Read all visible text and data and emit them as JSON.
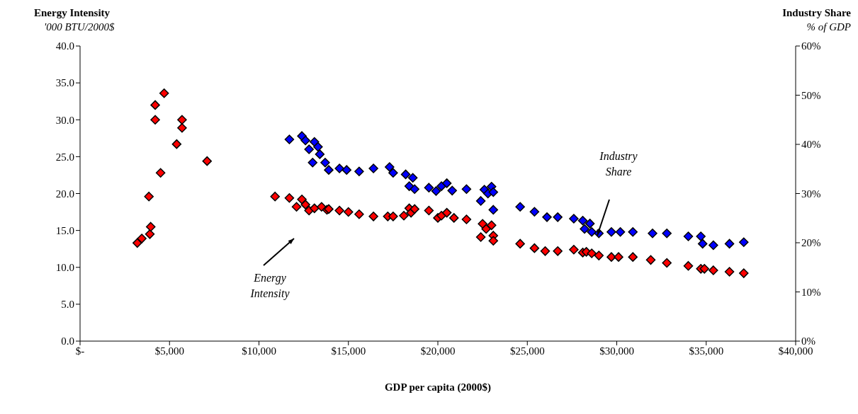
{
  "chart_data": {
    "type": "scatter",
    "xlabel": "GDP per capita (2000$)",
    "ylabel": "Energy Intensity\n'000 BTU/2000$",
    "y2label": "Industry Share\n% of GDP",
    "marker": "diamond",
    "xlim": [
      0,
      40000
    ],
    "xticks": [
      {
        "value": 0,
        "label": "$-"
      },
      {
        "value": 5000,
        "label": "$5,000"
      },
      {
        "value": 10000,
        "label": "$10,000"
      },
      {
        "value": 15000,
        "label": "$15,000"
      },
      {
        "value": 20000,
        "label": "$20,000"
      },
      {
        "value": 25000,
        "label": "$25,000"
      },
      {
        "value": 30000,
        "label": "$30,000"
      },
      {
        "value": 35000,
        "label": "$35,000"
      },
      {
        "value": 40000,
        "label": "$40,000"
      }
    ],
    "ylim": [
      0,
      40
    ],
    "yticks": [
      {
        "value": 0,
        "label": "0.0"
      },
      {
        "value": 5,
        "label": "5.0"
      },
      {
        "value": 10,
        "label": "10.0"
      },
      {
        "value": 15,
        "label": "15.0"
      },
      {
        "value": 20,
        "label": "20.0"
      },
      {
        "value": 25,
        "label": "25.0"
      },
      {
        "value": 30,
        "label": "30.0"
      },
      {
        "value": 35,
        "label": "35.0"
      },
      {
        "value": 40,
        "label": "40.0"
      }
    ],
    "y2lim": [
      0,
      60
    ],
    "y2ticks": [
      {
        "value": 0,
        "label": "0%"
      },
      {
        "value": 10,
        "label": "10%"
      },
      {
        "value": 20,
        "label": "20%"
      },
      {
        "value": 30,
        "label": "30%"
      },
      {
        "value": 40,
        "label": "40%"
      },
      {
        "value": 50,
        "label": "50%"
      },
      {
        "value": 60,
        "label": "60%"
      }
    ],
    "annotations": [
      "Energy Intensity",
      "Industry Share"
    ],
    "series": [
      {
        "color": "#ff0000",
        "x": [
          3200,
          3450,
          3900,
          3950,
          3850,
          4500,
          4200,
          4200,
          4700,
          5400,
          5700,
          5700,
          7100,
          10900,
          11700,
          12100,
          12400,
          12600,
          12800,
          13100,
          13500,
          13800,
          13900,
          14500,
          15000,
          15600,
          16400,
          17200,
          17500,
          18100,
          18400,
          18500,
          18700,
          19500,
          20000,
          20200,
          20500,
          20900,
          21600,
          22400,
          22500,
          22700,
          23000,
          23100,
          23100,
          24600,
          25400,
          26000,
          26700,
          27600,
          28100,
          28300,
          28600,
          29000,
          29700,
          30100,
          30900,
          31900,
          32800,
          34000,
          34700,
          34900,
          35400,
          36300,
          37100
        ],
        "values": [
          13.3,
          13.9,
          14.5,
          15.5,
          19.6,
          22.8,
          30,
          32,
          33.6,
          26.7,
          28.9,
          30,
          24.4,
          19.6,
          19.4,
          18.2,
          19.2,
          18.5,
          17.7,
          18,
          18.2,
          17.8,
          17.9,
          17.7,
          17.5,
          17.2,
          16.9,
          16.9,
          16.9,
          17,
          18,
          17.4,
          17.9,
          17.7,
          16.7,
          17,
          17.4,
          16.7,
          16.5,
          14.1,
          15.9,
          15.2,
          15.7,
          14.3,
          13.6,
          13.2,
          12.6,
          12.2,
          12.2,
          12.4,
          12,
          12.1,
          11.9,
          11.6,
          11.4,
          11.4,
          11.4,
          11,
          10.6,
          10.2,
          9.8,
          9.8,
          9.6,
          9.4,
          9.2
        ]
      },
      {
        "color": "#0000ff",
        "axis": "y2",
        "x": [
          11700,
          12400,
          12600,
          12800,
          13000,
          13100,
          13300,
          13400,
          13700,
          13900,
          14500,
          14900,
          15600,
          16400,
          17300,
          17500,
          18200,
          18600,
          18400,
          18700,
          19500,
          19900,
          20200,
          20500,
          20800,
          21600,
          22400,
          22600,
          22800,
          23000,
          23100,
          23100,
          24600,
          25400,
          26100,
          26700,
          27600,
          28100,
          28200,
          28500,
          28600,
          29000,
          29700,
          30200,
          30900,
          32000,
          32800,
          34000,
          34700,
          34800,
          35400,
          36300,
          37100
        ],
        "values": [
          41,
          41.7,
          40.8,
          39,
          36.3,
          40.5,
          39.5,
          38,
          36.3,
          34.8,
          35.1,
          34.8,
          34.5,
          35.1,
          35.4,
          34.2,
          33.9,
          33.2,
          31.5,
          30.9,
          31.2,
          30.5,
          31.5,
          32.1,
          30.6,
          30.9,
          28.5,
          30.8,
          30,
          31.4,
          30.3,
          26.7,
          27.3,
          26.3,
          25.2,
          25.2,
          24.9,
          24.5,
          22.8,
          23.9,
          22.2,
          21.9,
          22.2,
          22.2,
          22.2,
          21.9,
          21.9,
          21.3,
          21.3,
          19.8,
          19.5,
          19.8,
          20.1
        ]
      }
    ]
  }
}
